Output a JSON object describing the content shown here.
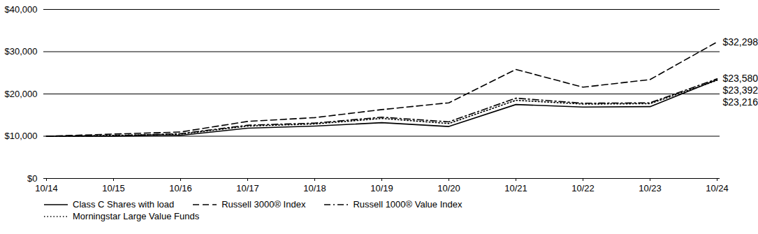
{
  "chart_data": {
    "type": "line",
    "x": [
      "10/14",
      "10/15",
      "10/16",
      "10/17",
      "10/18",
      "10/19",
      "10/20",
      "10/21",
      "10/22",
      "10/23",
      "10/24"
    ],
    "series": [
      {
        "name": "Class C Shares with load",
        "color": "#000000",
        "line_style": "solid",
        "values": [
          10000,
          10000,
          10200,
          11900,
          12400,
          13200,
          12300,
          17500,
          16900,
          17000,
          23392
        ]
      },
      {
        "name": "Russell 3000® Index",
        "color": "#000000",
        "line_style": "dashed",
        "values": [
          10000,
          10500,
          11000,
          13500,
          14400,
          16300,
          17900,
          25800,
          21600,
          23400,
          32298
        ]
      },
      {
        "name": "Russell 1000® Value Index",
        "color": "#000000",
        "line_style": "dashdot",
        "values": [
          10000,
          10100,
          10600,
          12600,
          13100,
          14500,
          13400,
          19000,
          17800,
          17900,
          23580
        ]
      },
      {
        "name": "Morningstar Large Value Funds",
        "color": "#000000",
        "line_style": "dotted",
        "values": [
          10000,
          10200,
          10500,
          12400,
          12900,
          14200,
          13000,
          18500,
          17600,
          17700,
          23216
        ]
      }
    ],
    "annotations": [
      {
        "x": "10/24",
        "y": 32298,
        "label": "$32,298"
      },
      {
        "x": "10/24",
        "y": 23580,
        "label": "$23,580"
      },
      {
        "x": "10/24",
        "y": 23392,
        "label": "$23,392"
      },
      {
        "x": "10/24",
        "y": 23216,
        "label": "$23,216"
      }
    ],
    "ylim": [
      0,
      40000
    ],
    "yticks": [
      {
        "value": 0,
        "label": "$0"
      },
      {
        "value": 10000,
        "label": "$10,000"
      },
      {
        "value": 20000,
        "label": "$20,000"
      },
      {
        "value": 30000,
        "label": "$30,000"
      },
      {
        "value": 40000,
        "label": "$40,000"
      }
    ],
    "grid": true,
    "legend": "bottom"
  }
}
